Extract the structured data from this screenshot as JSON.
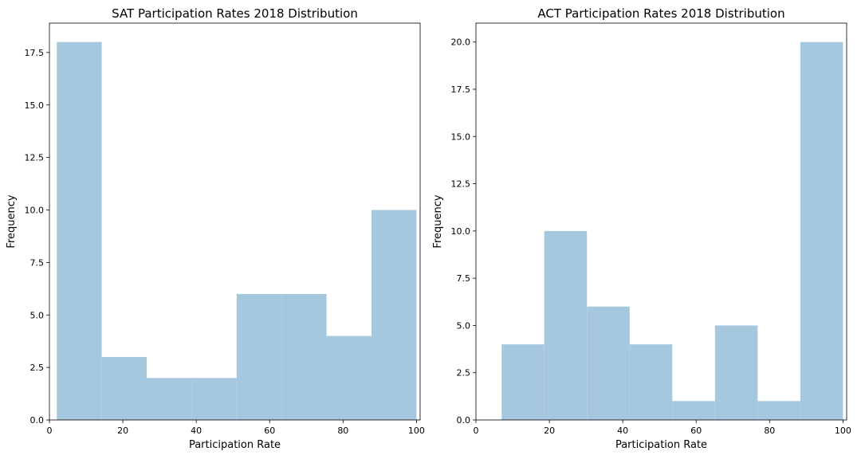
{
  "chart_data": [
    {
      "type": "bar",
      "title": "SAT Participation Rates 2018 Distribution",
      "xlabel": "Participation Rate",
      "ylabel": "Frequency",
      "xlim": [
        0,
        101
      ],
      "ylim": [
        0,
        18.9
      ],
      "xticks": [
        0,
        20,
        40,
        60,
        80,
        100
      ],
      "yticks": [
        0.0,
        2.5,
        5.0,
        7.5,
        10.0,
        12.5,
        15.0,
        17.5
      ],
      "bins": [
        {
          "x0": 2.0,
          "x1": 14.25,
          "count": 18
        },
        {
          "x0": 14.25,
          "x1": 26.5,
          "count": 3
        },
        {
          "x0": 26.5,
          "x1": 38.75,
          "count": 2
        },
        {
          "x0": 38.75,
          "x1": 51.0,
          "count": 2
        },
        {
          "x0": 51.0,
          "x1": 63.25,
          "count": 6
        },
        {
          "x0": 63.25,
          "x1": 75.5,
          "count": 6
        },
        {
          "x0": 75.5,
          "x1": 87.75,
          "count": 4
        },
        {
          "x0": 87.75,
          "x1": 100.0,
          "count": 10
        }
      ],
      "bar_color": "#a6c8df",
      "grid": false
    },
    {
      "type": "bar",
      "title": "ACT Participation Rates 2018 Distribution",
      "xlabel": "Participation Rate",
      "ylabel": "Frequency",
      "xlim": [
        0,
        101
      ],
      "ylim": [
        0,
        21
      ],
      "xticks": [
        0,
        20,
        40,
        60,
        80,
        100
      ],
      "yticks": [
        0.0,
        2.5,
        5.0,
        7.5,
        10.0,
        12.5,
        15.0,
        17.5,
        20.0
      ],
      "bins": [
        {
          "x0": 7.0,
          "x1": 18.625,
          "count": 4
        },
        {
          "x0": 18.625,
          "x1": 30.25,
          "count": 10
        },
        {
          "x0": 30.25,
          "x1": 41.875,
          "count": 6
        },
        {
          "x0": 41.875,
          "x1": 53.5,
          "count": 4
        },
        {
          "x0": 53.5,
          "x1": 65.125,
          "count": 1
        },
        {
          "x0": 65.125,
          "x1": 76.75,
          "count": 5
        },
        {
          "x0": 76.75,
          "x1": 88.375,
          "count": 1
        },
        {
          "x0": 88.375,
          "x1": 100.0,
          "count": 20
        }
      ],
      "bar_color": "#a6c8df",
      "grid": false
    }
  ]
}
